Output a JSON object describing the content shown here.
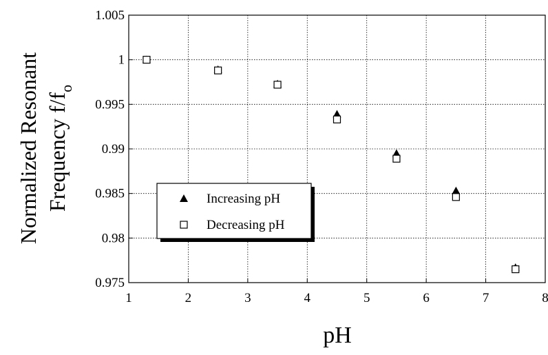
{
  "chart_data": {
    "type": "scatter",
    "x_label": "pH",
    "y_label": {
      "line1": "Normalized Resonant",
      "line2": "Frequency f/f",
      "subscript": "o"
    },
    "xlim": [
      1,
      8
    ],
    "xticks": [
      1,
      2,
      3,
      4,
      5,
      6,
      7,
      8
    ],
    "ylim": [
      0.975,
      1.005
    ],
    "yticks": [
      0.975,
      0.98,
      0.985,
      0.99,
      0.995,
      1,
      1.005
    ],
    "grid": true,
    "legend": "lower left",
    "series": [
      {
        "name": "Increasing pH",
        "color": "#000000",
        "marker": "triangle",
        "x": [
          1.3,
          2.5,
          3.5,
          4.5,
          5.5,
          6.5,
          7.5
        ],
        "values": [
          1.0,
          0.9989,
          0.9973,
          0.9939,
          0.9895,
          0.9853,
          0.9767
        ]
      },
      {
        "name": "Decreasing pH",
        "color": "#000000",
        "marker": "square",
        "x": [
          1.3,
          2.5,
          3.5,
          4.5,
          5.5,
          6.5,
          7.5
        ],
        "values": [
          1.0,
          0.9988,
          0.9972,
          0.9933,
          0.9889,
          0.9846,
          0.9765
        ]
      }
    ]
  }
}
